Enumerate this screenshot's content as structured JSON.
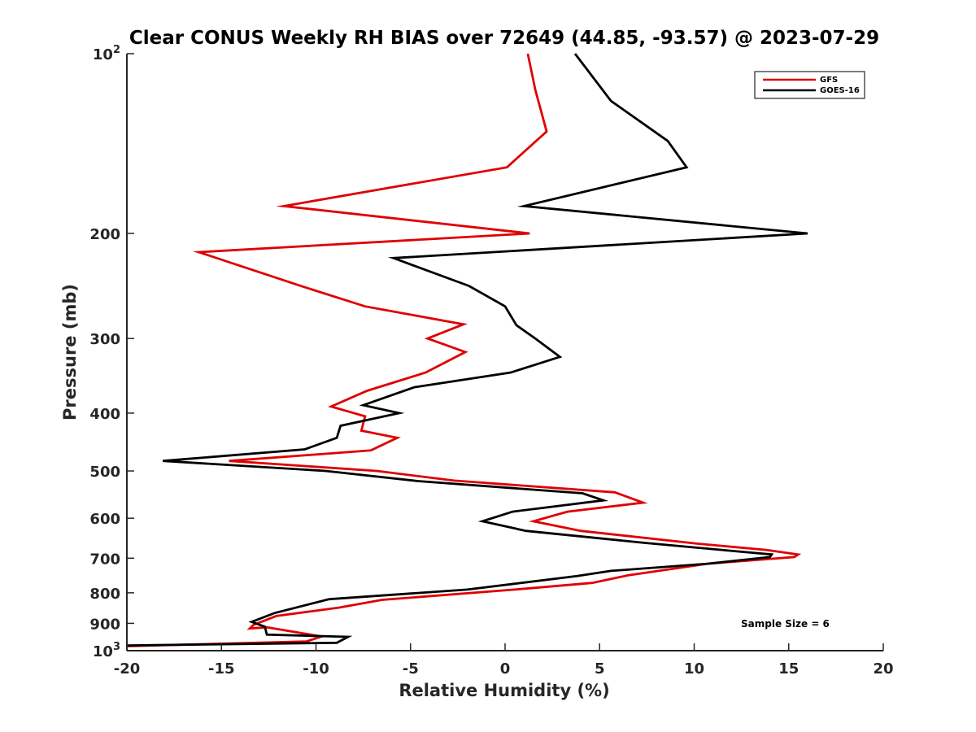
{
  "chart_data": {
    "type": "line",
    "title": "Clear CONUS Weekly RH BIAS over 72649 (44.85, -93.57) @ 2023-07-29",
    "xlabel": "Relative Humidity (%)",
    "ylabel": "Pressure (mb)",
    "xlim": [
      -20,
      20
    ],
    "ylim": [
      1000,
      100
    ],
    "y_scale": "log",
    "y_reversed": true,
    "x_ticks": [
      "-20",
      "-15",
      "-10",
      "-5",
      "0",
      "5",
      "10",
      "15",
      "20"
    ],
    "y_ticks": [
      {
        "value": 100,
        "label": "10",
        "sup": "2"
      },
      {
        "value": 200,
        "label": "200",
        "sup": ""
      },
      {
        "value": 300,
        "label": "300",
        "sup": ""
      },
      {
        "value": 400,
        "label": "400",
        "sup": ""
      },
      {
        "value": 500,
        "label": "500",
        "sup": ""
      },
      {
        "value": 600,
        "label": "600",
        "sup": ""
      },
      {
        "value": 700,
        "label": "700",
        "sup": ""
      },
      {
        "value": 800,
        "label": "800",
        "sup": ""
      },
      {
        "value": 900,
        "label": "900",
        "sup": ""
      },
      {
        "value": 1000,
        "label": "10",
        "sup": "3"
      }
    ],
    "grid": false,
    "legend_position": "top-right",
    "annotation": "Sample Size = 6",
    "series": [
      {
        "name": "GFS",
        "color": "#e00000",
        "points": [
          [
            1.2,
            100
          ],
          [
            1.6,
            115
          ],
          [
            2.2,
            135
          ],
          [
            0.1,
            155
          ],
          [
            -11.7,
            180
          ],
          [
            1.3,
            200
          ],
          [
            -16.2,
            215
          ],
          [
            -10.8,
            245
          ],
          [
            -7.4,
            265
          ],
          [
            -2.2,
            284
          ],
          [
            -4.1,
            300
          ],
          [
            -2.1,
            316
          ],
          [
            -4.2,
            342
          ],
          [
            -7.3,
            367
          ],
          [
            -9.2,
            390
          ],
          [
            -7.4,
            405
          ],
          [
            -7.6,
            428
          ],
          [
            -5.7,
            440
          ],
          [
            -7.1,
            462
          ],
          [
            -14.6,
            481
          ],
          [
            -6.8,
            500
          ],
          [
            -2.7,
            519
          ],
          [
            5.8,
            543
          ],
          [
            7.3,
            565
          ],
          [
            3.3,
            585
          ],
          [
            1.5,
            607
          ],
          [
            4.0,
            630
          ],
          [
            10.2,
            662
          ],
          [
            13.8,
            678
          ],
          [
            15.5,
            690
          ],
          [
            15.3,
            697
          ],
          [
            10.7,
            715
          ],
          [
            6.5,
            748
          ],
          [
            4.6,
            770
          ],
          [
            0.5,
            790
          ],
          [
            -6.5,
            822
          ],
          [
            -8.8,
            847
          ],
          [
            -12.1,
            875
          ],
          [
            -13.3,
            905
          ],
          [
            -13.5,
            918
          ],
          [
            -12.6,
            914
          ],
          [
            -9.7,
            947
          ],
          [
            -10.5,
            965
          ],
          [
            -20.0,
            983
          ]
        ]
      },
      {
        "name": "GOES-16",
        "color": "#000000",
        "points": [
          [
            3.7,
            100
          ],
          [
            5.6,
            120
          ],
          [
            8.6,
            140
          ],
          [
            9.6,
            155
          ],
          [
            1.0,
            180
          ],
          [
            16.0,
            200
          ],
          [
            -5.9,
            220
          ],
          [
            -1.9,
            245
          ],
          [
            0.0,
            265
          ],
          [
            0.6,
            285
          ],
          [
            1.6,
            300
          ],
          [
            2.9,
            322
          ],
          [
            0.3,
            342
          ],
          [
            -4.8,
            362
          ],
          [
            -7.5,
            388
          ],
          [
            -5.6,
            400
          ],
          [
            -8.7,
            420
          ],
          [
            -8.9,
            440
          ],
          [
            -10.6,
            460
          ],
          [
            -18.1,
            481
          ],
          [
            -9.5,
            500
          ],
          [
            -4.6,
            520
          ],
          [
            4.1,
            545
          ],
          [
            5.2,
            560
          ],
          [
            0.4,
            585
          ],
          [
            -1.2,
            607
          ],
          [
            1.1,
            630
          ],
          [
            7.4,
            660
          ],
          [
            11.9,
            680
          ],
          [
            14.1,
            690
          ],
          [
            14.0,
            697
          ],
          [
            10.7,
            715
          ],
          [
            5.6,
            735
          ],
          [
            3.8,
            750
          ],
          [
            -2.0,
            790
          ],
          [
            -9.3,
            820
          ],
          [
            -12.2,
            865
          ],
          [
            -13.4,
            895
          ],
          [
            -12.7,
            912
          ],
          [
            -12.6,
            940
          ],
          [
            -8.3,
            948
          ],
          [
            -8.9,
            970
          ],
          [
            -20.0,
            980
          ]
        ]
      }
    ]
  }
}
